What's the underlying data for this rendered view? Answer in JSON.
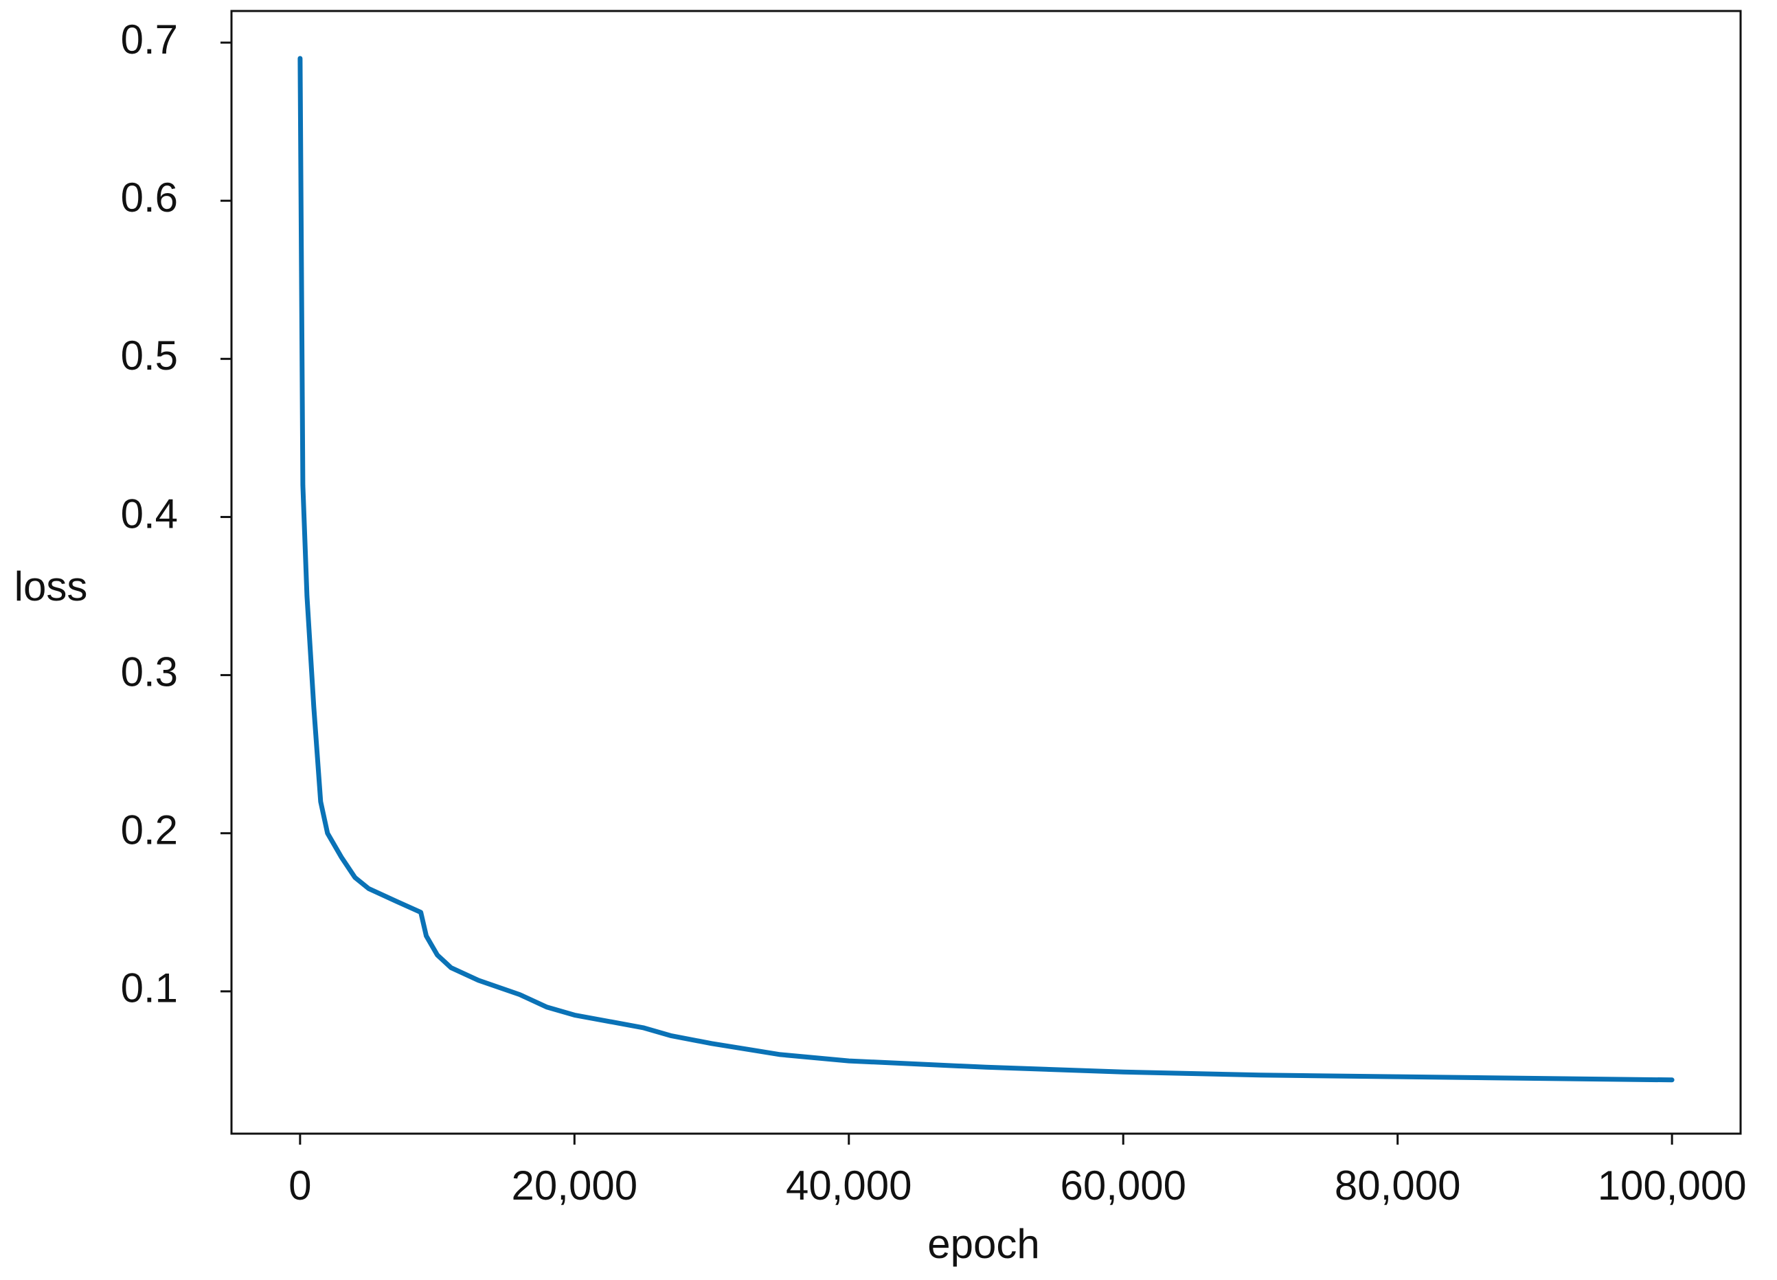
{
  "chart_data": {
    "type": "line",
    "x_label": "epoch",
    "y_label": "loss",
    "x": [
      0,
      200,
      500,
      1000,
      1500,
      2000,
      3000,
      4000,
      5000,
      7000,
      8800,
      9200,
      10000,
      11000,
      13000,
      16000,
      18000,
      20000,
      25000,
      27000,
      30000,
      35000,
      40000,
      50000,
      60000,
      70000,
      80000,
      90000,
      100000
    ],
    "series": [
      {
        "name": "loss",
        "color": "#0a72b6",
        "values": [
          0.69,
          0.42,
          0.35,
          0.28,
          0.22,
          0.2,
          0.185,
          0.172,
          0.165,
          0.157,
          0.15,
          0.135,
          0.123,
          0.115,
          0.107,
          0.098,
          0.09,
          0.085,
          0.077,
          0.072,
          0.067,
          0.06,
          0.056,
          0.052,
          0.049,
          0.047,
          0.046,
          0.045,
          0.044
        ]
      }
    ],
    "xlim": [
      -5000,
      105000
    ],
    "xticks": [
      0,
      {
        "value": 20000,
        "label": "20,000"
      },
      {
        "value": 40000,
        "label": "40,000"
      },
      {
        "value": 60000,
        "label": "60,000"
      },
      {
        "value": 80000,
        "label": "80,000"
      },
      {
        "value": 100000,
        "label": "100,000"
      }
    ],
    "ylim": [
      0.01,
      0.72
    ],
    "yticks": [
      0.1,
      0.2,
      0.3,
      0.4,
      0.5,
      0.6,
      0.7
    ],
    "grid": false
  }
}
